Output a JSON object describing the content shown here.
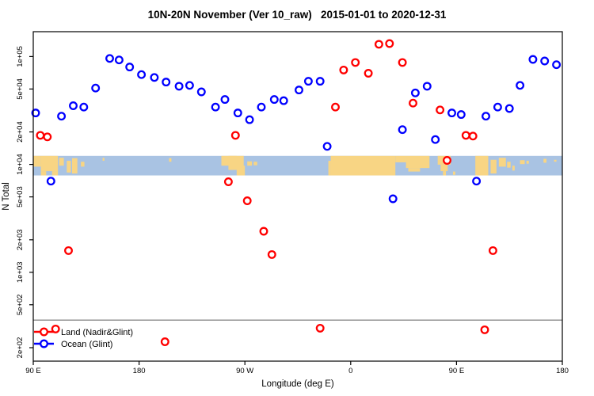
{
  "title": "10N-20N November (Ver 10_raw)   2015-01-01 to 2020-12-31",
  "legend": {
    "items": [
      {
        "label": "Land (Nadir&Glint)",
        "color": "#ff0000"
      },
      {
        "label": "Ocean (Glint)",
        "color": "#0000ff"
      }
    ]
  },
  "chart_data": {
    "type": "scatter",
    "title": "10N-20N November (Ver 10_raw)   2015-01-01 to 2020-12-31",
    "xlabel": "Longitude (deg E)",
    "ylabel": "N Total",
    "x_axis": {
      "type": "linear",
      "domain": [
        90,
        540
      ],
      "note": "longitude plotted eastward from 90E wrapping through 180, 90W, 0, 90E to 180",
      "ticks": [
        {
          "value": 90,
          "label": "90 E"
        },
        {
          "value": 180,
          "label": "180"
        },
        {
          "value": 270,
          "label": "90 W"
        },
        {
          "value": 360,
          "label": "0"
        },
        {
          "value": 450,
          "label": "90 E"
        },
        {
          "value": 540,
          "label": "180"
        }
      ]
    },
    "y_axis": {
      "type": "log",
      "domain": [
        150,
        170000
      ],
      "ticks": [
        {
          "value": 100000,
          "label": "1e+05"
        },
        {
          "value": 50000,
          "label": "5e+04"
        },
        {
          "value": 20000,
          "label": "2e+04"
        },
        {
          "value": 10000,
          "label": "1e+04"
        },
        {
          "value": 5000,
          "label": "5e+03"
        },
        {
          "value": 2000,
          "label": "2e+03"
        },
        {
          "value": 1000,
          "label": "1e+03"
        },
        {
          "value": 500,
          "label": "5e+02"
        },
        {
          "value": 200,
          "label": "2e+02"
        }
      ]
    },
    "reference_line": {
      "y": 360,
      "color": "#8c8c8c"
    },
    "series": [
      {
        "name": "Ocean (Glint)",
        "color": "#0000ff",
        "marker": "open-circle",
        "points": [
          [
            92,
            30000
          ],
          [
            105,
            7000
          ],
          [
            114,
            28000
          ],
          [
            124,
            35000
          ],
          [
            133,
            34000
          ],
          [
            143,
            51000
          ],
          [
            155,
            96000
          ],
          [
            163,
            93000
          ],
          [
            172,
            80000
          ],
          [
            182,
            68000
          ],
          [
            193,
            64000
          ],
          [
            203,
            58000
          ],
          [
            214,
            53000
          ],
          [
            223,
            54000
          ],
          [
            233,
            47000
          ],
          [
            245,
            34000
          ],
          [
            253,
            40000
          ],
          [
            264,
            30000
          ],
          [
            274,
            26000
          ],
          [
            284,
            34000
          ],
          [
            295,
            40000
          ],
          [
            303,
            39000
          ],
          [
            316,
            49000
          ],
          [
            324,
            59000
          ],
          [
            334,
            59000
          ],
          [
            340,
            14700
          ],
          [
            396,
            4800
          ],
          [
            404,
            21000
          ],
          [
            415,
            46000
          ],
          [
            425,
            53000
          ],
          [
            432,
            17000
          ],
          [
            446,
            30000
          ],
          [
            454,
            29000
          ],
          [
            467,
            7000
          ],
          [
            475,
            28000
          ],
          [
            485,
            34000
          ],
          [
            495,
            33000
          ],
          [
            504,
            54000
          ],
          [
            515,
            94000
          ],
          [
            525,
            91000
          ],
          [
            535,
            84000
          ]
        ]
      },
      {
        "name": "Land (Nadir&Glint)",
        "color": "#ff0000",
        "marker": "open-circle",
        "points": [
          [
            96,
            18600
          ],
          [
            102,
            18000
          ],
          [
            120,
            1590
          ],
          [
            109,
            298
          ],
          [
            202,
            227
          ],
          [
            256,
            6900
          ],
          [
            262,
            18600
          ],
          [
            272,
            4600
          ],
          [
            286,
            2400
          ],
          [
            293,
            1460
          ],
          [
            334,
            303
          ],
          [
            347,
            34000
          ],
          [
            354,
            75000
          ],
          [
            364,
            88000
          ],
          [
            375,
            70000
          ],
          [
            384,
            130000
          ],
          [
            393,
            132000
          ],
          [
            404,
            88000
          ],
          [
            413,
            37000
          ],
          [
            436,
            32000
          ],
          [
            442,
            10900
          ],
          [
            458,
            18600
          ],
          [
            464,
            18300
          ],
          [
            474,
            293
          ],
          [
            481,
            1590
          ]
        ]
      }
    ],
    "map_band": {
      "description": "world coastline strip for 10N-20N latitude band",
      "y_top_value": 12000,
      "y_bottom_value": 7900,
      "ocean_color": "#a9c3e3",
      "land_color": "#f8d584",
      "land_patches": [
        [
          90,
          96.5,
          0,
          0.55
        ],
        [
          96.5,
          111,
          0,
          0.78
        ],
        [
          96.5,
          101,
          0.78,
          1
        ],
        [
          106,
          111,
          0.78,
          1
        ],
        [
          112,
          116,
          0.1,
          0.5
        ],
        [
          118.5,
          122,
          0.25,
          0.85
        ],
        [
          123,
          127.5,
          0.12,
          0.9
        ],
        [
          130.5,
          133.5,
          0.3,
          0.55
        ],
        [
          149,
          150.5,
          0.1,
          0.25
        ],
        [
          205.5,
          207.5,
          0.12,
          0.3
        ],
        [
          250,
          263,
          0,
          0.5
        ],
        [
          256,
          269,
          0,
          0.72
        ],
        [
          263,
          270,
          0.5,
          1
        ],
        [
          272,
          276,
          0.28,
          0.5
        ],
        [
          277.5,
          280.5,
          0.3,
          0.48
        ],
        [
          341,
          343,
          0.25,
          1
        ],
        [
          343,
          398,
          0,
          1
        ],
        [
          398,
          407,
          0,
          0.33
        ],
        [
          407,
          427,
          0,
          0.62
        ],
        [
          409,
          419,
          0.62,
          0.8
        ],
        [
          434,
          445,
          0,
          0.45
        ],
        [
          436.5,
          442.5,
          0.45,
          0.78
        ],
        [
          438.5,
          441,
          0.78,
          1
        ],
        [
          447,
          449,
          0.8,
          0.97
        ],
        [
          466,
          477,
          0,
          1
        ],
        [
          479,
          484,
          0.2,
          0.9
        ],
        [
          486,
          492,
          0.1,
          0.55
        ],
        [
          493,
          496,
          0.3,
          0.6
        ],
        [
          497.5,
          499.5,
          0.5,
          0.75
        ],
        [
          504,
          508,
          0.22,
          0.42
        ],
        [
          509.5,
          511.5,
          0.25,
          0.4
        ],
        [
          524,
          526.5,
          0.15,
          0.35
        ],
        [
          533,
          535,
          0.2,
          0.3
        ]
      ]
    }
  }
}
